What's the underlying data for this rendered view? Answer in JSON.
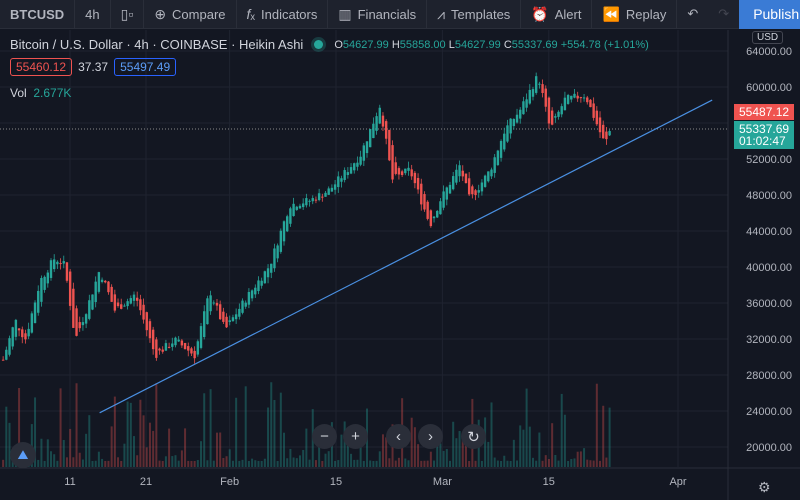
{
  "toolbar": {
    "symbol": "BTCUSD",
    "interval": "4h",
    "compare": "Compare",
    "indicators": "Indicators",
    "financials": "Financials",
    "templates": "Templates",
    "alert": "Alert",
    "replay": "Replay",
    "publish": "Publish"
  },
  "legend": {
    "title": "Bitcoin / U.S. Dollar · 4h · COINBASE · Heikin Ashi",
    "o_label": "O",
    "o": "54627.99",
    "h_label": "H",
    "h": "55858.00",
    "l_label": "L",
    "l": "54627.99",
    "c_label": "C",
    "c": "55337.69",
    "change": "+554.78 (+1.01%)",
    "bid": "55460.12",
    "spread": "37.37",
    "ask": "55497.49",
    "vol_label": "Vol",
    "vol": "2.677K"
  },
  "price_axis": {
    "currency": "USD",
    "ticks": [
      "64000.00",
      "60000.00",
      "52000.00",
      "48000.00",
      "44000.00",
      "40000.00",
      "36000.00",
      "32000.00",
      "28000.00",
      "24000.00",
      "20000.00"
    ],
    "label_red": "55487.12",
    "label_last": "55337.69",
    "countdown": "01:02:47"
  },
  "time_axis": {
    "ticks": [
      {
        "t": 10,
        "label": "11"
      },
      {
        "t": 20,
        "label": "21"
      },
      {
        "t": 31,
        "label": "Feb"
      },
      {
        "t": 45,
        "label": "15"
      },
      {
        "t": 59,
        "label": "Mar"
      },
      {
        "t": 73,
        "label": "15"
      },
      {
        "t": 90,
        "label": "Apr"
      }
    ]
  },
  "colors": {
    "up": "#26a69a",
    "down": "#ef5350",
    "line": "#2962ff",
    "bg": "#131722"
  },
  "chart_data": {
    "type": "candlestick",
    "style": "Heikin Ashi",
    "x_unit": "days since Jan 1",
    "ylim": [
      16000,
      66000
    ],
    "price_path": [
      [
        1.2,
        29700
      ],
      [
        2.8,
        34100
      ],
      [
        4.1,
        31900
      ],
      [
        6.1,
        38500
      ],
      [
        8.0,
        41000
      ],
      [
        9.3,
        40200
      ],
      [
        10.7,
        31900
      ],
      [
        12.6,
        36300
      ],
      [
        13.9,
        39700
      ],
      [
        15.9,
        35200
      ],
      [
        18.6,
        36900
      ],
      [
        21.2,
        30200
      ],
      [
        23.8,
        31900
      ],
      [
        26.4,
        30200
      ],
      [
        28.4,
        37400
      ],
      [
        30.4,
        33000
      ],
      [
        33.0,
        36300
      ],
      [
        36.3,
        40200
      ],
      [
        38.9,
        46900
      ],
      [
        41.6,
        47400
      ],
      [
        44.2,
        48600
      ],
      [
        48.2,
        52400
      ],
      [
        50.8,
        58000
      ],
      [
        52.4,
        49700
      ],
      [
        54.7,
        50800
      ],
      [
        57.4,
        44700
      ],
      [
        58.7,
        47400
      ],
      [
        61.3,
        51300
      ],
      [
        62.6,
        47400
      ],
      [
        65.3,
        50800
      ],
      [
        67.2,
        55200
      ],
      [
        69.2,
        57400
      ],
      [
        71.6,
        61300
      ],
      [
        73.2,
        55200
      ],
      [
        75.1,
        58600
      ],
      [
        77.8,
        59100
      ],
      [
        80.4,
        53600
      ],
      [
        81.1,
        55337.69
      ]
    ],
    "trendline": [
      [
        13.9,
        23800
      ],
      [
        94.5,
        58550
      ]
    ]
  }
}
